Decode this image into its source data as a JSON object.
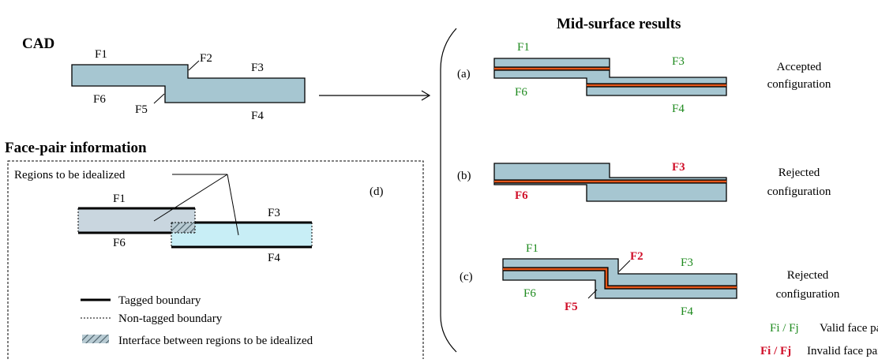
{
  "titles": {
    "cad": "CAD",
    "face_pair": "Face-pair information",
    "mid_surface": "Mid-surface results"
  },
  "cad_labels": {
    "f1": "F1",
    "f2": "F2",
    "f3": "F3",
    "f4": "F4",
    "f5": "F5",
    "f6": "F6"
  },
  "face_pair": {
    "regions_label": "Regions to be idealized",
    "tag": "(d)",
    "f1": "F1",
    "f3": "F3",
    "f4": "F4",
    "f6": "F6"
  },
  "legend": {
    "tagged": "Tagged boundary",
    "non_tagged": "Non-tagged boundary",
    "interface": "Interface between regions to be idealized"
  },
  "results": {
    "a": {
      "tag": "(a)",
      "f1": "F1",
      "f3": "F3",
      "f4": "F4",
      "f6": "F6",
      "status_line1": "Accepted",
      "status_line2": "configuration"
    },
    "b": {
      "tag": "(b)",
      "f3": "F3",
      "f6": "F6",
      "status_line1": "Rejected",
      "status_line2": "configuration"
    },
    "c": {
      "tag": "(c)",
      "f1": "F1",
      "f2": "F2",
      "f3": "F3",
      "f4": "F4",
      "f5": "F5",
      "f6": "F6",
      "status_line1": "Rejected",
      "status_line2": "configuration"
    }
  },
  "pair_legend": {
    "valid_symbol": "Fi / Fj",
    "valid_text": "Valid face pair",
    "invalid_symbol": "Fi / Fj",
    "invalid_text": "Invalid face pair"
  },
  "colors": {
    "body_fill": "#a6c6d1",
    "mid_surface": "#e5561a",
    "valid": "#1e8a1e",
    "invalid": "#d0102a",
    "region_left": "#c9d6df",
    "region_right": "#c8eef6"
  }
}
